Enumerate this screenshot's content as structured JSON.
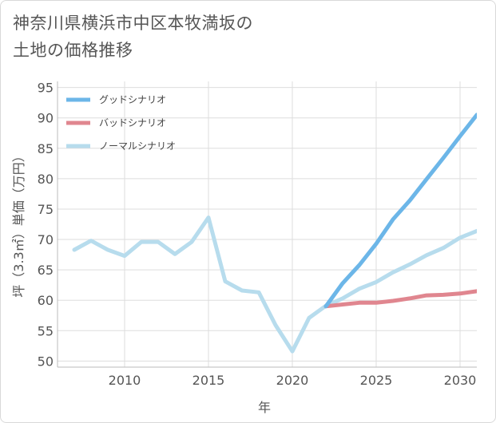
{
  "title": {
    "line1": "神奈川県横浜市中区本牧満坂の",
    "line2": "土地の価格推移"
  },
  "chart_data": {
    "type": "line",
    "title": "神奈川県横浜市中区本牧満坂の土地の価格推移",
    "xlabel": "年",
    "ylabel": "坪（3.3㎡）単価（万円）",
    "xlim": [
      2006,
      2031
    ],
    "ylim": [
      49,
      96
    ],
    "xticks": [
      2010,
      2015,
      2020,
      2025,
      2030
    ],
    "yticks": [
      50,
      55,
      60,
      65,
      70,
      75,
      80,
      85,
      90,
      95
    ],
    "grid": true,
    "legend_position": "top-left",
    "series": [
      {
        "name": "グッドシナリオ",
        "color": "#6cb6e8",
        "x": [
          2022,
          2023,
          2024,
          2025,
          2026,
          2027,
          2028,
          2029,
          2030,
          2031
        ],
        "y": [
          59.0,
          62.8,
          65.8,
          69.3,
          73.3,
          76.4,
          79.9,
          83.4,
          87.0,
          90.5
        ]
      },
      {
        "name": "バッドシナリオ",
        "color": "#e0868f",
        "x": [
          2022,
          2023,
          2024,
          2025,
          2026,
          2027,
          2028,
          2029,
          2030,
          2031
        ],
        "y": [
          59.0,
          59.3,
          59.6,
          59.6,
          59.9,
          60.3,
          60.8,
          60.9,
          61.1,
          61.5
        ]
      },
      {
        "name": "ノーマルシナリオ",
        "color": "#b7dced",
        "x": [
          2007,
          2008,
          2009,
          2010,
          2011,
          2012,
          2013,
          2014,
          2015,
          2016,
          2017,
          2018,
          2019,
          2020,
          2021,
          2022,
          2023,
          2024,
          2025,
          2026,
          2027,
          2028,
          2029,
          2030,
          2031
        ],
        "y": [
          68.3,
          69.8,
          68.3,
          67.3,
          69.6,
          69.6,
          67.6,
          69.6,
          73.6,
          63.1,
          61.6,
          61.3,
          55.9,
          51.6,
          57.1,
          59.1,
          60.3,
          61.9,
          63.0,
          64.6,
          65.9,
          67.4,
          68.6,
          70.3,
          71.4
        ]
      }
    ]
  }
}
